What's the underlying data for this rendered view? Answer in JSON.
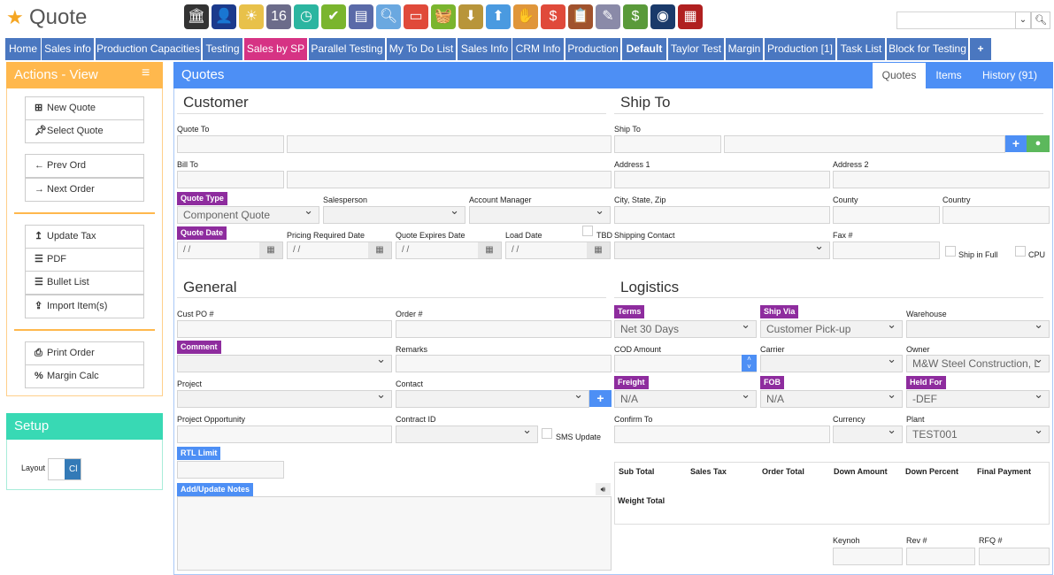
{
  "app": {
    "title": "Quote",
    "search_placeholder": ""
  },
  "toolbar_icons": [
    "bank-icon",
    "user-icon",
    "weather-icon",
    "calendar-icon",
    "clock-icon",
    "checkmark-icon",
    "report-icon",
    "magnifier-icon",
    "truck-icon",
    "basket-icon",
    "download-box-icon",
    "upload-box-icon",
    "hand-money-icon",
    "price-tag-icon",
    "clipboard-icon",
    "pencil-icon",
    "cash-icon",
    "speedometer-icon",
    "factory-icon"
  ],
  "nav_tabs": [
    "Home",
    "Sales info",
    "Production Capacities",
    "Testing",
    "Sales by SP",
    "Parallel Testing",
    "My To Do List",
    "Sales Info",
    "CRM Info",
    "Production",
    "Default",
    "Taylor Test",
    "Margin",
    "Production [1]",
    "Task List",
    "Block for Testing",
    "+"
  ],
  "colors": {
    "nav": "#4a77c0",
    "nav_active": "#d63384",
    "header": "#4d8ff5",
    "actions": "#ffb84d",
    "setup": "#38d9b4",
    "badge": "#8e2c9e"
  },
  "sidebar": {
    "actions_title": "Actions - View",
    "buttons": [
      "New Quote",
      "Select Quote",
      "Prev Ord",
      "Next Order",
      "Update Tax",
      "PDF",
      "Bullet List",
      "Import Item(s)",
      "Print Order",
      "Margin Calc"
    ],
    "setup_title": "Setup",
    "layout_label": "Layout",
    "toggle_label": "Cl"
  },
  "main": {
    "title": "Quotes",
    "tabs": [
      "Quotes",
      "Items",
      "History (91)"
    ],
    "customer": {
      "title": "Customer",
      "quote_to": "Quote To",
      "bill_to": "Bill To",
      "quote_type": "Quote Type",
      "quote_type_value": "Component Quote",
      "salesperson": "Salesperson",
      "account_manager": "Account Manager",
      "quote_date": "Quote Date",
      "pricing_required_date": "Pricing Required Date",
      "quote_expires_date": "Quote Expires Date",
      "load_date": "Load Date",
      "tbd": "TBD",
      "date_placeholder": "/ /"
    },
    "ship_to": {
      "title": "Ship To",
      "ship_to": "Ship To",
      "address1": "Address 1",
      "address2": "Address 2",
      "city": "City, State, Zip",
      "county": "County",
      "country": "Country",
      "shipping_contact": "Shipping Contact",
      "fax": "Fax #",
      "ship_in_full": "Ship in Full",
      "cpu": "CPU"
    },
    "general": {
      "title": "General",
      "cust_po": "Cust PO #",
      "order_no": "Order #",
      "comment": "Comment",
      "remarks": "Remarks",
      "project": "Project",
      "contact": "Contact",
      "project_opportunity": "Project Opportunity",
      "contract_id": "Contract ID",
      "sms_update": "SMS Update",
      "rtl_limit": "RTL Limit",
      "notes": "Add/Update Notes"
    },
    "logistics": {
      "title": "Logistics",
      "terms": "Terms",
      "terms_value": "Net 30 Days",
      "ship_via": "Ship Via",
      "ship_via_value": "Customer Pick-up",
      "warehouse": "Warehouse",
      "cod_amount": "COD Amount",
      "carrier": "Carrier",
      "owner": "Owner",
      "owner_value": "M&W Steel Construction, L",
      "freight": "Freight",
      "freight_value": "N/A",
      "fob": "FOB",
      "fob_value": "N/A",
      "held_for": "Held For",
      "held_for_value": "-DEF",
      "confirm_to": "Confirm To",
      "currency": "Currency",
      "plant": "Plant",
      "plant_value": "TEST001"
    },
    "totals": {
      "headers": [
        "Sub Total",
        "Sales Tax",
        "Order Total",
        "Down Amount",
        "Down Percent",
        "Final Payment"
      ],
      "weight_total": "Weight Total"
    },
    "bottom": {
      "keynoh": "Keynoh",
      "rev": "Rev #",
      "rfq": "RFQ #"
    }
  }
}
